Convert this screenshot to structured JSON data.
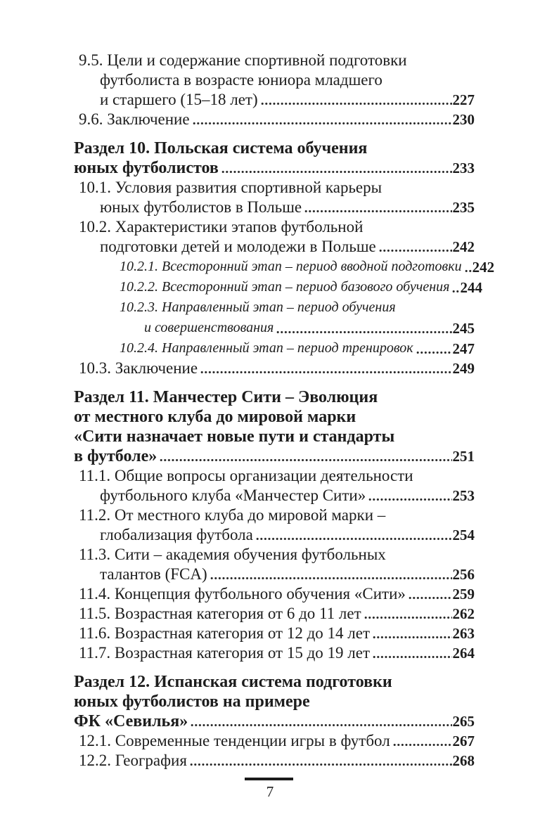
{
  "page": {
    "footer": {
      "page_number": "7"
    },
    "colors": {
      "text": "#1d1d1d",
      "background": "#ffffff"
    }
  },
  "toc": {
    "entries": [
      {
        "style": "item",
        "lines": [
          "9.5. Цели и содержание спортивной подготовки",
          "футболиста в возрасте юниора младшего",
          "и старшего (15–18 лет)"
        ],
        "page": "227"
      },
      {
        "style": "item",
        "lines": [
          "9.6. Заключение"
        ],
        "page": "230"
      },
      {
        "style": "heading",
        "lines": [
          "Раздел 10. Польская система обучения",
          "юных футболистов"
        ],
        "page": "233"
      },
      {
        "style": "item",
        "lines": [
          "10.1. Условия развития спортивной карьеры",
          "юных футболистов в Польше"
        ],
        "page": "235"
      },
      {
        "style": "item",
        "lines": [
          "10.2. Характеристики этапов футбольной",
          "подготовки детей и молодежи в Польше"
        ],
        "page": "242"
      },
      {
        "style": "subitem",
        "lines": [
          "10.2.1. Всесторонний этап – период вводной подготовки"
        ],
        "page": "242"
      },
      {
        "style": "subitem",
        "lines": [
          "10.2.2. Всесторонний этап – период базового обучения"
        ],
        "page": "244"
      },
      {
        "style": "subitem",
        "lines": [
          "10.2.3. Направленный этап – период обучения",
          "и совершенствования"
        ],
        "page": "245"
      },
      {
        "style": "subitem",
        "lines": [
          "10.2.4. Направленный этап – период тренировок"
        ],
        "page": "247"
      },
      {
        "style": "item",
        "lines": [
          "10.3. Заключение"
        ],
        "page": "249"
      },
      {
        "style": "heading",
        "lines": [
          "Раздел 11. Манчестер Сити – Эволюция",
          "от местного клуба до мировой марки",
          "«Сити назначает новые пути и стандарты",
          "в футболе»"
        ],
        "page": "251"
      },
      {
        "style": "item",
        "lines": [
          "11.1. Общие вопросы организации деятельности",
          "футбольного клуба «Манчестер Сити»"
        ],
        "page": "253"
      },
      {
        "style": "item",
        "lines": [
          "11.2. От местного клуба до мировой марки –",
          "глобализация футбола"
        ],
        "page": "254"
      },
      {
        "style": "item",
        "lines": [
          "11.3. Сити – академия обучения футбольных",
          "талантов (FCA)"
        ],
        "page": "256"
      },
      {
        "style": "item",
        "lines": [
          "11.4. Концепция футбольного обучения «Сити»"
        ],
        "page": "259"
      },
      {
        "style": "item",
        "lines": [
          "11.5. Возрастная категория от 6 до 11 лет"
        ],
        "page": "262"
      },
      {
        "style": "item",
        "lines": [
          "11.6. Возрастная категория от 12 до 14 лет"
        ],
        "page": "263"
      },
      {
        "style": "item",
        "lines": [
          "11.7. Возрастная категория от 15 до 19 лет"
        ],
        "page": "264"
      },
      {
        "style": "heading",
        "lines": [
          "Раздел 12. Испанская система подготовки",
          "юных футболистов на примере",
          "ФК «Севилья»"
        ],
        "page": "265"
      },
      {
        "style": "item",
        "lines": [
          "12.1. Современные тенденции игры в футбол"
        ],
        "page": "267"
      },
      {
        "style": "item",
        "lines": [
          "12.2. География"
        ],
        "page": "268"
      }
    ]
  }
}
